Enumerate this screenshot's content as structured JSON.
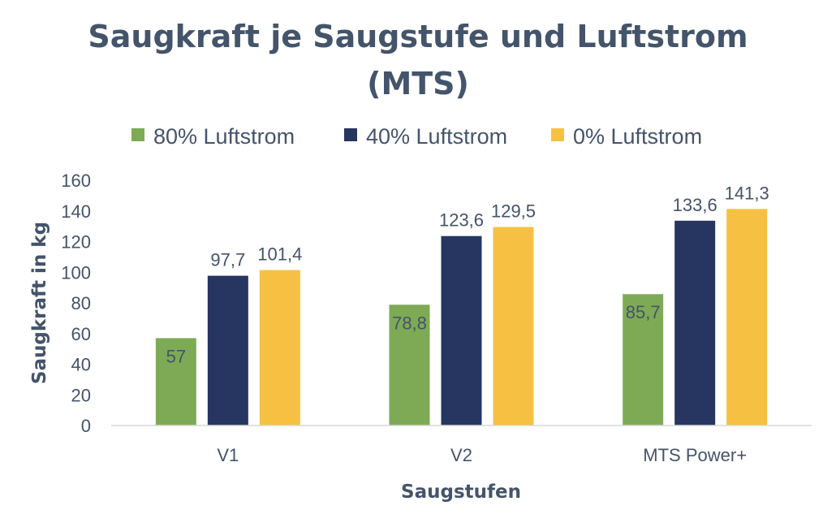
{
  "chart_data": {
    "type": "bar",
    "title_lines": [
      "Saugkraft je Saugstufe und Luftstrom",
      "(MTS)"
    ],
    "categories": [
      "V1",
      "V2",
      "MTS Power+"
    ],
    "series": [
      {
        "name": "80% Luftstrom",
        "color": "#7eaa55",
        "values": [
          57,
          78.8,
          85.7
        ],
        "labels": [
          "57",
          "78,8",
          "85,7"
        ],
        "label_position": "inside"
      },
      {
        "name": "40% Luftstrom",
        "color": "#263660",
        "values": [
          97.7,
          123.6,
          133.6
        ],
        "labels": [
          "97,7",
          "123,6",
          "133,6"
        ],
        "label_position": "outside"
      },
      {
        "name": "0% Luftstrom",
        "color": "#f6c143",
        "values": [
          101.4,
          129.5,
          141.3
        ],
        "labels": [
          "101,4",
          "129,5",
          "141,3"
        ],
        "label_position": "outside"
      }
    ],
    "xlabel": "Saugstufen",
    "ylabel": "Saugkraft in kg",
    "ylim": [
      0,
      160
    ],
    "yticks": [
      0,
      20,
      40,
      60,
      80,
      100,
      120,
      140,
      160
    ],
    "grid": false,
    "legend_position": "top"
  }
}
